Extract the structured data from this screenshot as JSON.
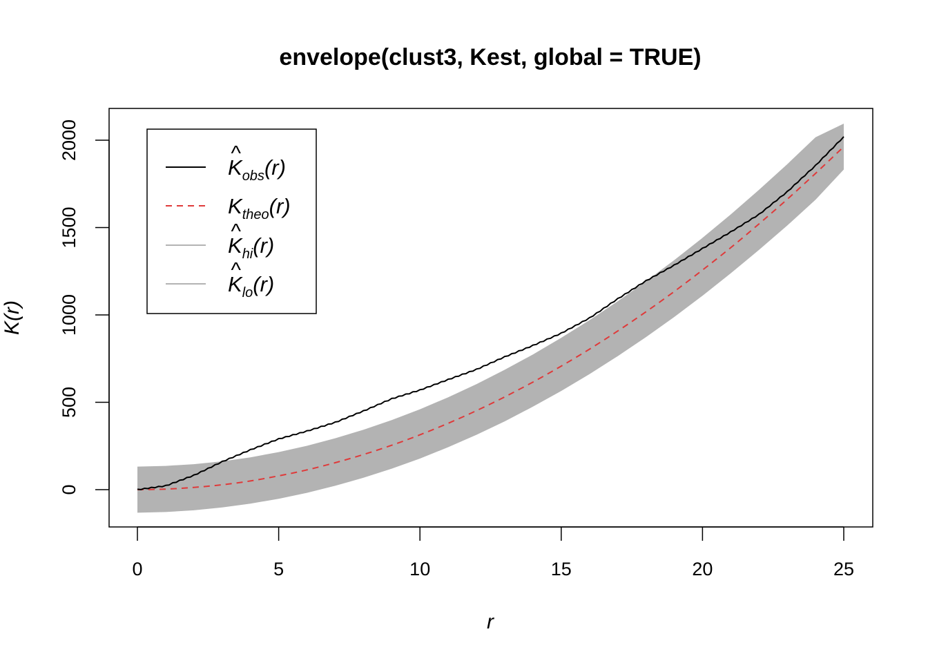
{
  "chart_data": {
    "type": "line",
    "title": "envelope(clust3, Kest, global = TRUE)",
    "xlabel": "r",
    "ylabel": "K(r)",
    "xlim": [
      0,
      25
    ],
    "ylim": [
      -200,
      2200
    ],
    "xticks": [
      0,
      5,
      10,
      15,
      20,
      25
    ],
    "yticks": [
      0,
      500,
      1000,
      1500,
      2000
    ],
    "xtick_labels": [
      "0",
      "5",
      "10",
      "15",
      "20",
      "25"
    ],
    "ytick_labels": [
      "0",
      "500",
      "1000",
      "1500",
      "2000"
    ],
    "grid": false,
    "legend_position": "top-left",
    "colors": {
      "obs": "#000000",
      "theo": "#df3a3a",
      "band": "#b3b3b3"
    },
    "legend": [
      {
        "key": "obs",
        "main": "K",
        "hat": true,
        "sub": "obs",
        "suffix": "(r)",
        "style": "solid",
        "color": "#000000"
      },
      {
        "key": "theo",
        "main": "K",
        "hat": false,
        "sub": "theo",
        "suffix": "(r)",
        "style": "dashed",
        "color": "#df3a3a"
      },
      {
        "key": "hi",
        "main": "K",
        "hat": true,
        "sub": "hi",
        "suffix": "(r)",
        "style": "solid",
        "color": "#b3b3b3"
      },
      {
        "key": "lo",
        "main": "K",
        "hat": true,
        "sub": "lo",
        "suffix": "(r)",
        "style": "solid",
        "color": "#b3b3b3"
      }
    ],
    "x": [
      0,
      1,
      2,
      3,
      4,
      5,
      6,
      7,
      8,
      9,
      10,
      11,
      12,
      13,
      14,
      15,
      16,
      17,
      18,
      19,
      20,
      21,
      22,
      23,
      24,
      25
    ],
    "series": [
      {
        "key": "obs",
        "values": [
          0,
          22,
          82,
          160,
          228,
          290,
          335,
          385,
          450,
          520,
          570,
          630,
          688,
          760,
          825,
          895,
          982,
          1092,
          1195,
          1285,
          1380,
          1475,
          1575,
          1705,
          1855,
          2020
        ]
      },
      {
        "key": "theo",
        "values": [
          0,
          3,
          13,
          28,
          50,
          79,
          113,
          154,
          201,
          254,
          314,
          380,
          452,
          531,
          616,
          707,
          804,
          908,
          1018,
          1134,
          1257,
          1385,
          1521,
          1662,
          1810,
          1963
        ]
      },
      {
        "key": "hi",
        "values": [
          132,
          136,
          146,
          162,
          185,
          215,
          251,
          294,
          343,
          398,
          460,
          529,
          604,
          686,
          774,
          869,
          970,
          1078,
          1193,
          1314,
          1441,
          1575,
          1716,
          1863,
          2017,
          2095
        ]
      },
      {
        "key": "lo",
        "values": [
          -132,
          -128,
          -118,
          -102,
          -80,
          -52,
          -18,
          22,
          68,
          120,
          178,
          243,
          314,
          391,
          475,
          565,
          661,
          764,
          873,
          988,
          1110,
          1238,
          1372,
          1512,
          1659,
          1832
        ]
      }
    ]
  }
}
